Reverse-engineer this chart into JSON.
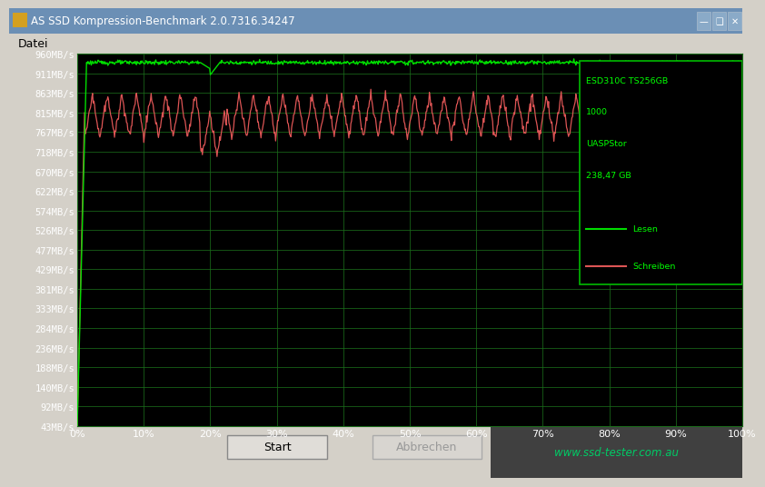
{
  "title": "AS SSD Kompression-Benchmark 2.0.7316.34247",
  "menu": "Datei",
  "outer_bg": "#d4d0c8",
  "plot_bg": "#000000",
  "grid_color": "#1a6b1a",
  "ytick_labels": [
    "960MB/s",
    "911MB/s",
    "863MB/s",
    "815MB/s",
    "767MB/s",
    "718MB/s",
    "670MB/s",
    "622MB/s",
    "574MB/s",
    "526MB/s",
    "477MB/s",
    "429MB/s",
    "381MB/s",
    "333MB/s",
    "284MB/s",
    "236MB/s",
    "188MB/s",
    "140MB/s",
    "92MB/s",
    "43MB/s"
  ],
  "ytick_values": [
    960,
    911,
    863,
    815,
    767,
    718,
    670,
    622,
    574,
    526,
    477,
    429,
    381,
    333,
    284,
    236,
    188,
    140,
    92,
    43
  ],
  "xtick_labels": [
    "0%",
    "10%",
    "20%",
    "30%",
    "40%",
    "50%",
    "60%",
    "70%",
    "80%",
    "90%",
    "100%"
  ],
  "xtick_values": [
    0,
    10,
    20,
    30,
    40,
    50,
    60,
    70,
    80,
    90,
    100
  ],
  "ymin": 43,
  "ymax": 960,
  "xmin": 0,
  "xmax": 100,
  "read_color": "#00dd00",
  "write_color": "#dd5555",
  "legend_text": [
    "ESD310C TS256GB",
    "1000",
    "UASPStor",
    "238,47 GB"
  ],
  "legend_lesen": "Lesen",
  "legend_schreiben": "Schreiben",
  "bottom_left_text": "Start",
  "bottom_right_text": "Abbrechen",
  "watermark": "www.ssd-tester.com.au",
  "title_bar_color": "#6b8fb5",
  "legend_border_color": "#00bb00",
  "legend_text_color": "#00ff00"
}
